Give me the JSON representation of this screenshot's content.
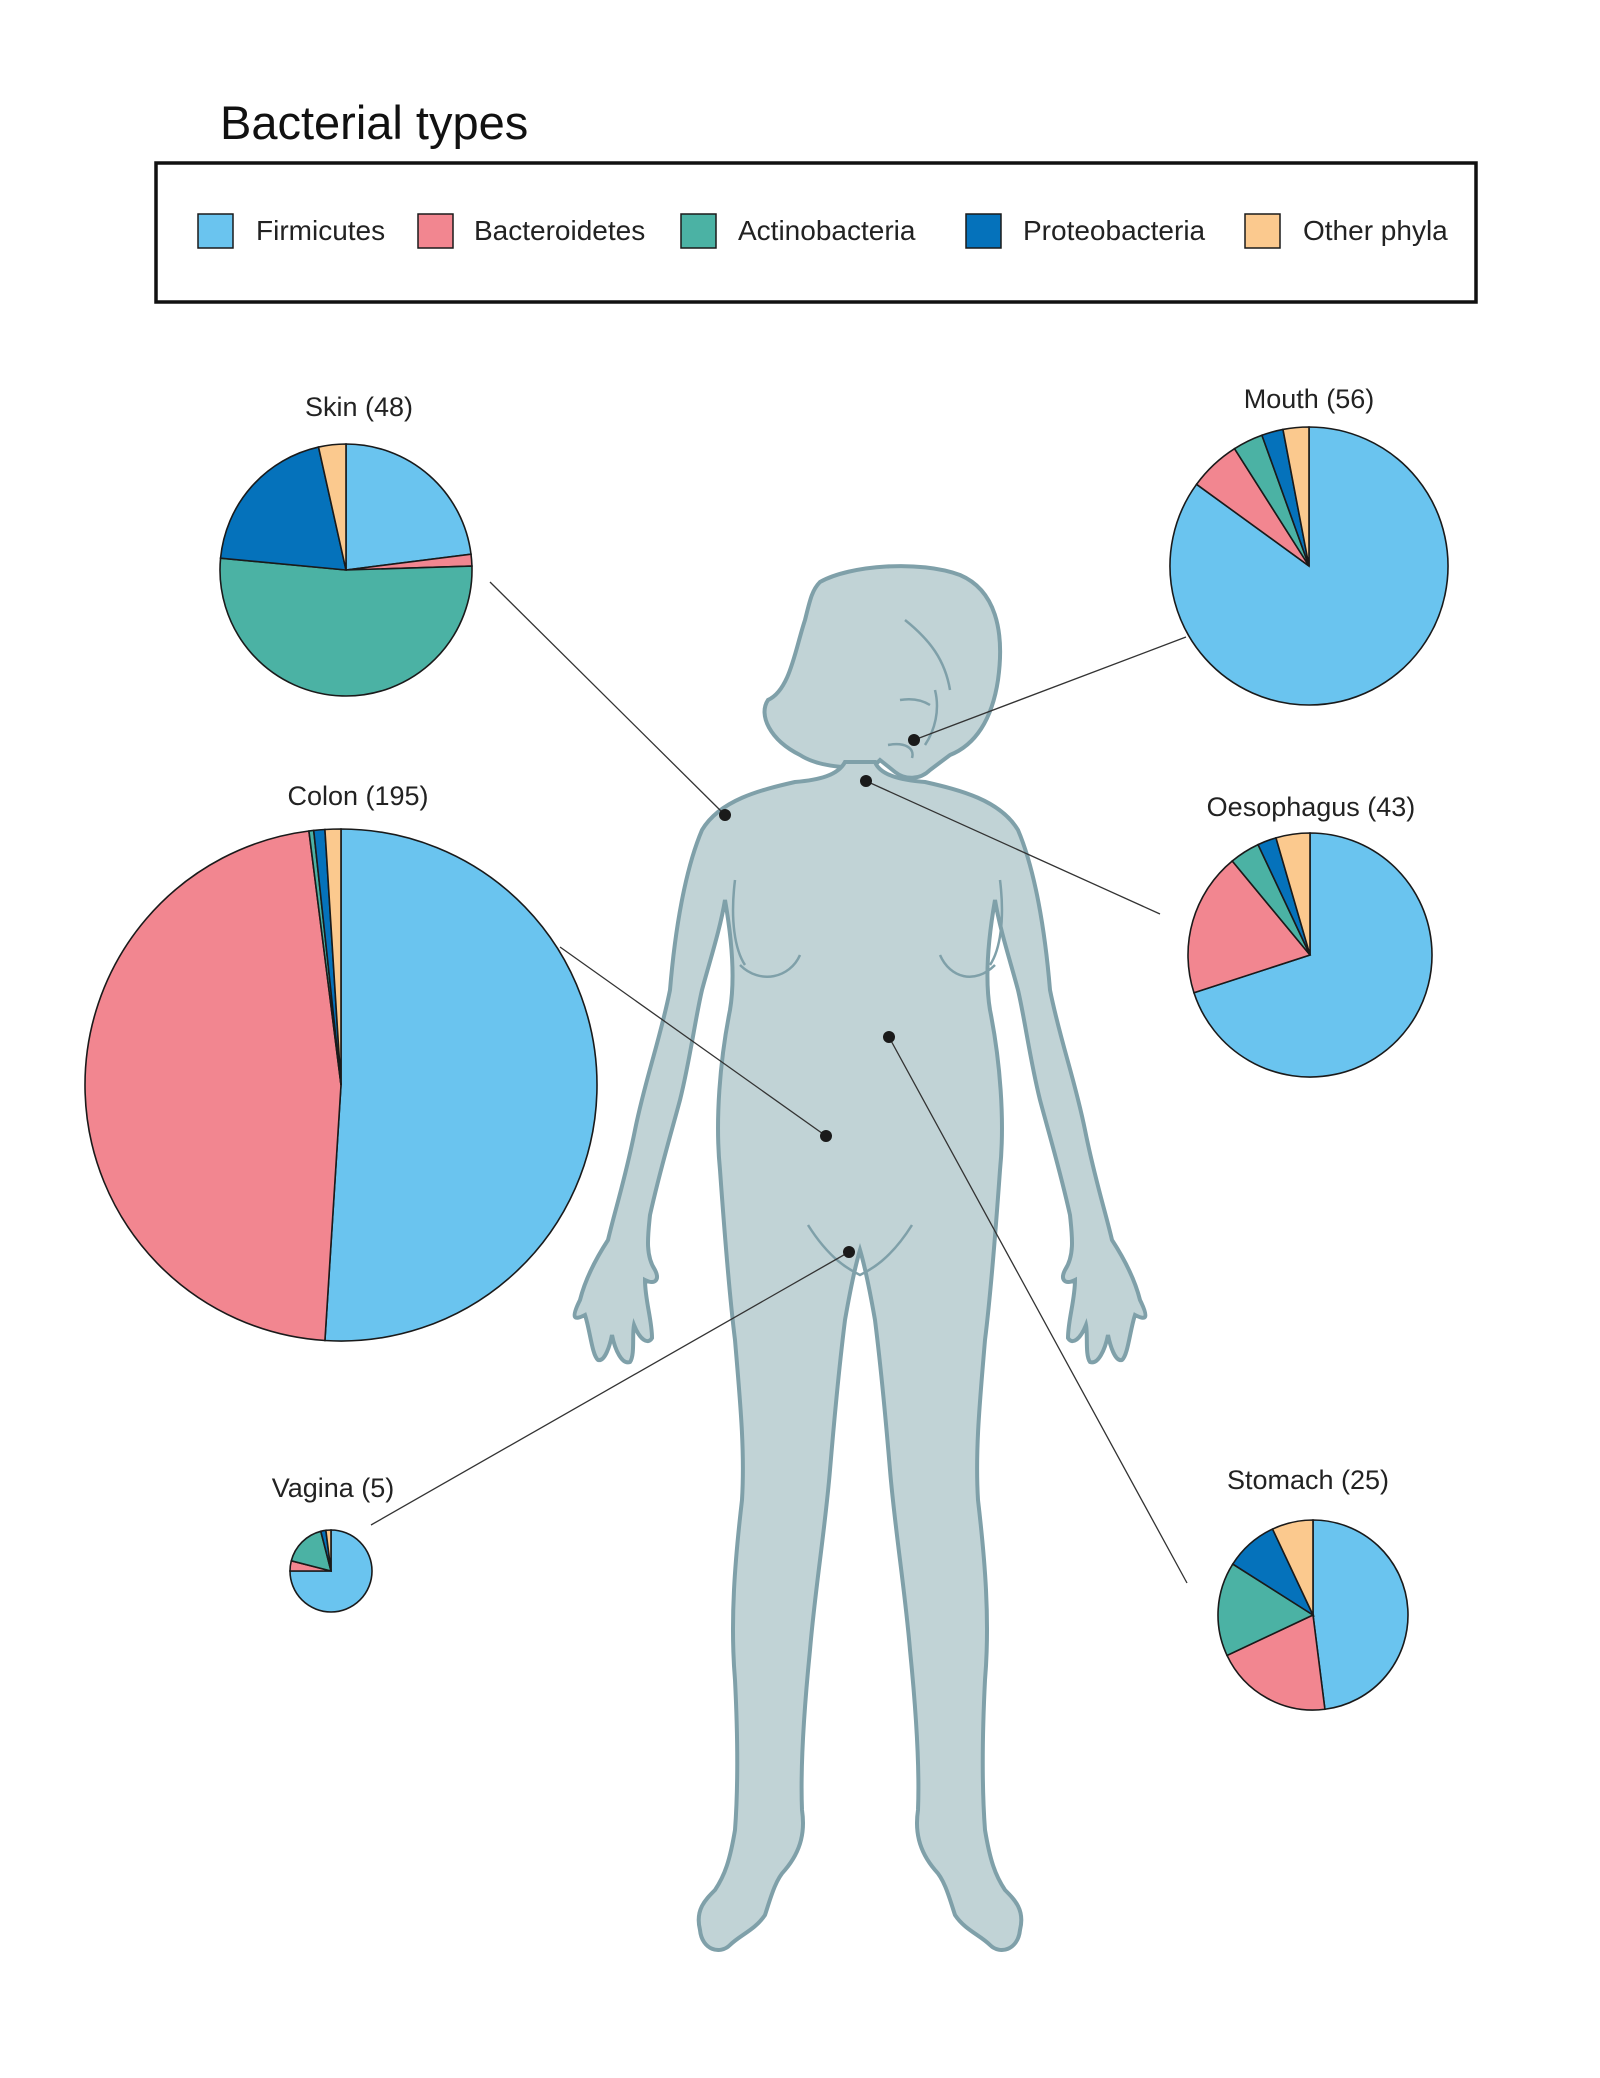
{
  "chart_data": {
    "type": "pie",
    "title": "Bacterial types",
    "legend": [
      {
        "name": "Firmicutes",
        "color": "#6ac4ef"
      },
      {
        "name": "Bacteroidetes",
        "color": "#f28690"
      },
      {
        "name": "Actinobacteria",
        "color": "#4bb2a4"
      },
      {
        "name": "Proteobacteria",
        "color": "#0572bb"
      },
      {
        "name": "Other phyla",
        "color": "#fbc98e"
      }
    ],
    "pies": [
      {
        "id": "skin",
        "label": "Skin (48)",
        "count": 48,
        "values": {
          "Firmicutes": 23,
          "Bacteroidetes": 1.5,
          "Actinobacteria": 52,
          "Proteobacteria": 20,
          "Other phyla": 3.5
        }
      },
      {
        "id": "mouth",
        "label": "Mouth (56)",
        "count": 56,
        "values": {
          "Firmicutes": 85,
          "Bacteroidetes": 6,
          "Actinobacteria": 3.5,
          "Proteobacteria": 2.5,
          "Other phyla": 3
        }
      },
      {
        "id": "colon",
        "label": "Colon (195)",
        "count": 195,
        "values": {
          "Firmicutes": 51,
          "Bacteroidetes": 47,
          "Actinobacteria": 0.3,
          "Proteobacteria": 0.7,
          "Other phyla": 1
        }
      },
      {
        "id": "oesophagus",
        "label": "Oesophagus (43)",
        "count": 43,
        "values": {
          "Firmicutes": 70,
          "Bacteroidetes": 19,
          "Actinobacteria": 4,
          "Proteobacteria": 2.5,
          "Other phyla": 4.5
        }
      },
      {
        "id": "vagina",
        "label": "Vagina (5)",
        "count": 5,
        "values": {
          "Firmicutes": 75,
          "Bacteroidetes": 4,
          "Actinobacteria": 17,
          "Proteobacteria": 2,
          "Other phyla": 2
        }
      },
      {
        "id": "stomach",
        "label": "Stomach (25)",
        "count": 25,
        "values": {
          "Firmicutes": 48,
          "Bacteroidetes": 20,
          "Actinobacteria": 16,
          "Proteobacteria": 9,
          "Other phyla": 7
        }
      }
    ]
  }
}
